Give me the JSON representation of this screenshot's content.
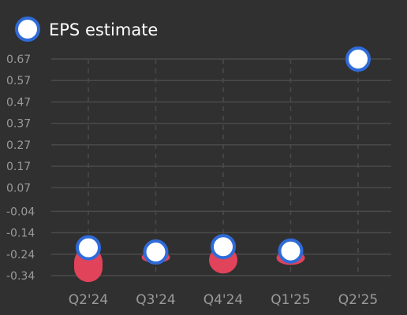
{
  "chart_data": {
    "type": "scatter",
    "legend": {
      "label": "EPS estimate",
      "position": "top-left"
    },
    "categories": [
      "Q2'24",
      "Q3'24",
      "Q4'24",
      "Q1'25",
      "Q2'25"
    ],
    "series": [
      {
        "name": "EPS estimate",
        "values": [
          -0.21,
          -0.23,
          -0.205,
          -0.225,
          0.67
        ]
      }
    ],
    "actual_values": [
      -0.37,
      -0.28,
      -0.33,
      -0.29,
      null
    ],
    "y_ticks": [
      "0.67",
      "0.57",
      "0.47",
      "0.37",
      "0.27",
      "0.17",
      "0.07",
      "-0.04",
      "-0.14",
      "-0.24",
      "-0.34"
    ],
    "y_tick_values": [
      0.67,
      0.57,
      0.47,
      0.37,
      0.27,
      0.17,
      0.07,
      -0.04,
      -0.14,
      -0.24,
      -0.34
    ],
    "ylim": [
      -0.34,
      0.67
    ],
    "grid": true,
    "colors": {
      "background": "#303030",
      "grid": "#4a4a4a",
      "estimate_fill": "#ffffff",
      "estimate_stroke": "#2f6bd8",
      "miss_bar": "#e0435a"
    }
  }
}
